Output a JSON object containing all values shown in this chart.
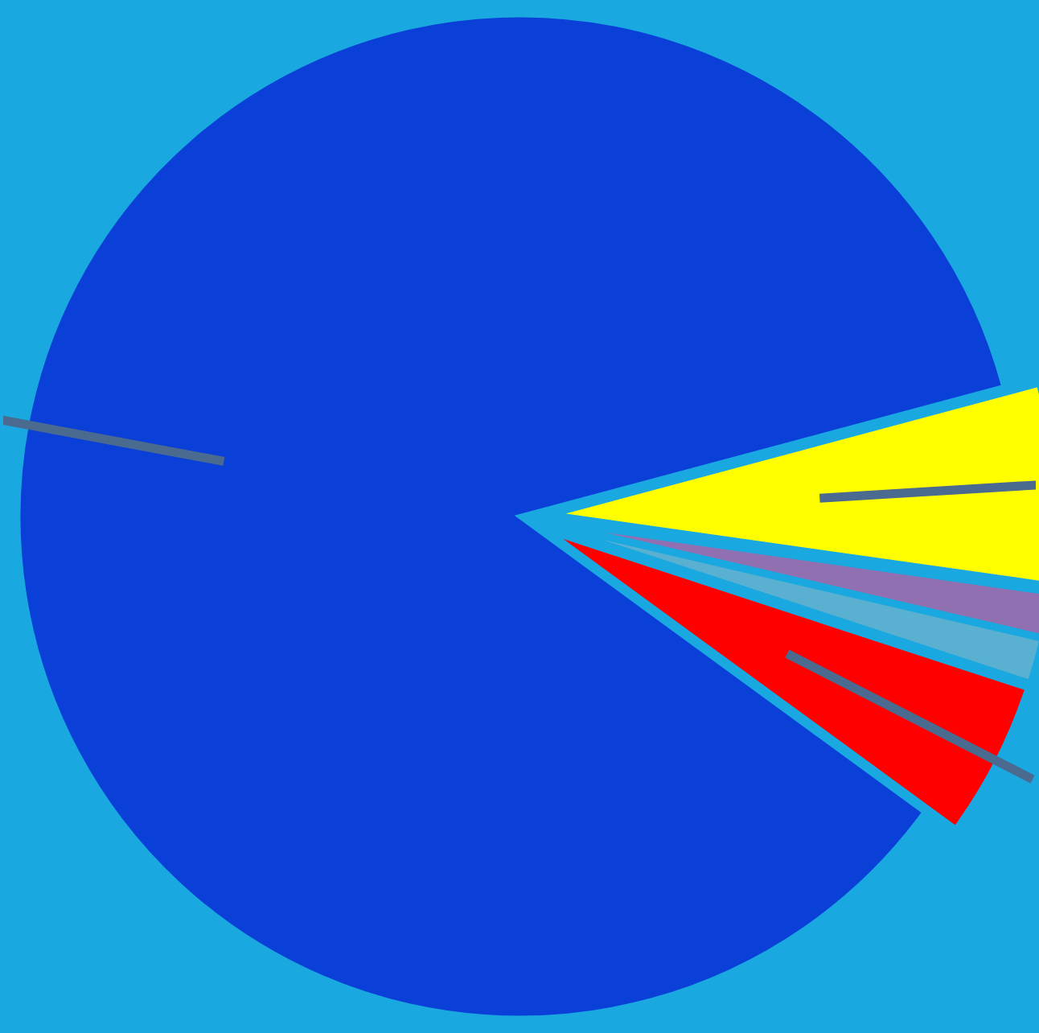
{
  "chart_data": {
    "type": "pie",
    "categories": [
      null,
      null,
      null,
      null,
      null
    ],
    "values": [
      85.8,
      5.0,
      1.4,
      1.4,
      6.4
    ],
    "colors": [
      "#0a3fd8",
      "#ff0000",
      "#5ab0d0",
      "#9070b0",
      "#ffff00"
    ]
  }
}
